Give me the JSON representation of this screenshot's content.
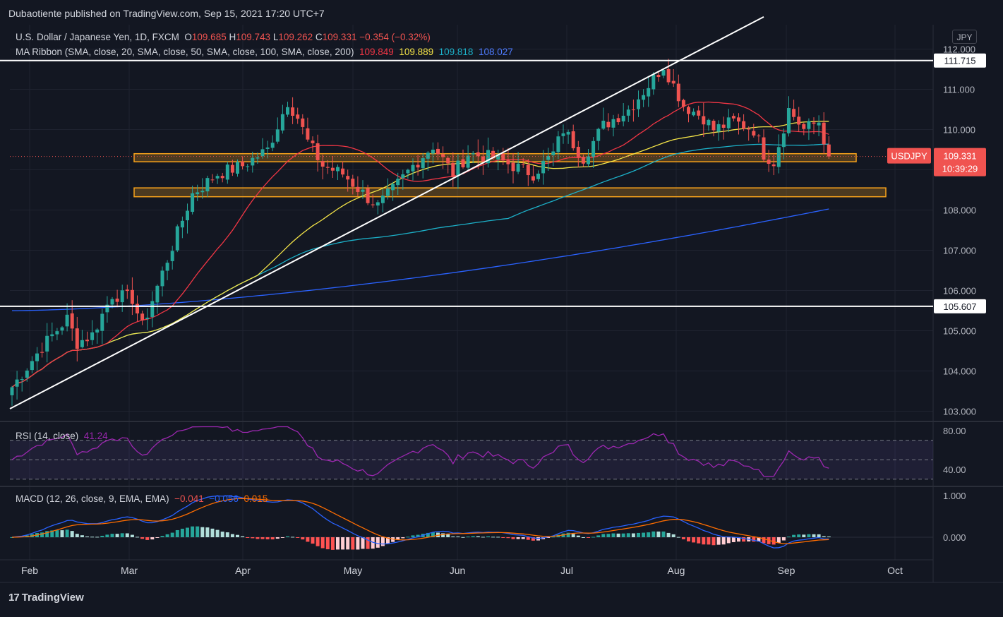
{
  "header": {
    "publisher": "Dubaotiente published on TradingView.com, Sep 15, 2021 17:20 UTC+7"
  },
  "legend": {
    "symbol": "U.S. Dollar / Japanese Yen, 1D, FXCM",
    "o_label": "O",
    "open": "109.685",
    "h_label": "H",
    "high": "109.743",
    "l_label": "L",
    "low": "109.262",
    "c_label": "C",
    "close": "109.331",
    "change": "−0.354 (−0.32%)",
    "ma_label": "MA Ribbon (SMA, close, 20, SMA, close, 50, SMA, close, 100, SMA, close, 200)",
    "ma20": "109.849",
    "ma50": "109.889",
    "ma100": "109.818",
    "ma200": "108.027",
    "rsi_label": "RSI (14, close)",
    "rsi_value": "41.24",
    "macd_label": "MACD (12, 26, close, 9, EMA, EMA)",
    "macd": "−0.041",
    "signal": "−0.056",
    "hist": "0.015"
  },
  "currency": "JPY",
  "price_tag": {
    "symbol": "USDJPY",
    "price": "109.331",
    "countdown": "10:39:29"
  },
  "footer": {
    "brand": "TradingView",
    "mark": "17"
  },
  "colors": {
    "bg": "#131722",
    "grid": "#1f2330",
    "text": "#d1d4dc",
    "up": "#26a69a",
    "down": "#ef5350",
    "ma20": "#f23645",
    "ma50": "#f5e548",
    "ma100": "#1cb1c9",
    "ma200": "#2a62ff",
    "rsi": "#9c27b0",
    "macd": "#2962ff",
    "signal": "#ff6d00",
    "zone": "#f7a21b",
    "tag": "#f05350"
  },
  "chart_data": [
    {
      "type": "candlestick",
      "title": "U.S. Dollar / Japanese Yen, 1D, FXCM",
      "x_ticks": [
        "Feb",
        "Mar",
        "Apr",
        "May",
        "Jun",
        "Jul",
        "Aug",
        "Sep",
        "Oct"
      ],
      "y_ticks": [
        103.0,
        104.0,
        105.0,
        106.0,
        107.0,
        108.0,
        109.0,
        110.0,
        111.0,
        112.0
      ],
      "y_tick_labels": [
        "103.000",
        "104.000",
        "105.000",
        "106.000",
        "107.000",
        "108.000",
        "109.000",
        "110.000",
        "111.000",
        "112.000"
      ],
      "ylim": [
        102.8,
        112.3
      ],
      "n_bars": 164,
      "anchors_close": [
        [
          0,
          103.6
        ],
        [
          6,
          104.6
        ],
        [
          11,
          105.3
        ],
        [
          13,
          104.7
        ],
        [
          16,
          104.9
        ],
        [
          20,
          105.9
        ],
        [
          24,
          105.8
        ],
        [
          26,
          105.1
        ],
        [
          29,
          106.1
        ],
        [
          32,
          107.1
        ],
        [
          36,
          108.4
        ],
        [
          41,
          108.9
        ],
        [
          46,
          109.1
        ],
        [
          51,
          109.5
        ],
        [
          55,
          110.7
        ],
        [
          57,
          110.3
        ],
        [
          59,
          109.7
        ],
        [
          62,
          109.1
        ],
        [
          66,
          108.9
        ],
        [
          71,
          108.3
        ],
        [
          73,
          108.1
        ],
        [
          76,
          108.5
        ],
        [
          80,
          109.1
        ],
        [
          84,
          109.6
        ],
        [
          88,
          108.9
        ],
        [
          91,
          109.4
        ],
        [
          96,
          109.3
        ],
        [
          100,
          109.1
        ],
        [
          104,
          108.9
        ],
        [
          108,
          109.4
        ],
        [
          110,
          110.0
        ],
        [
          114,
          109.3
        ],
        [
          118,
          110.1
        ],
        [
          123,
          110.5
        ],
        [
          127,
          111.1
        ],
        [
          130,
          111.6
        ],
        [
          134,
          110.6
        ],
        [
          138,
          110.3
        ],
        [
          140,
          110.0
        ],
        [
          144,
          110.2
        ],
        [
          148,
          110.0
        ],
        [
          150,
          109.4
        ],
        [
          152,
          109.2
        ],
        [
          155,
          110.5
        ],
        [
          158,
          110.0
        ],
        [
          161,
          110.2
        ],
        [
          163,
          109.33
        ]
      ],
      "horizontal_levels": [
        {
          "value": 111.715,
          "label": "111.715"
        },
        {
          "value": 105.607,
          "label": "105.607"
        }
      ],
      "zones": [
        {
          "from": 109.2,
          "to": 109.4
        },
        {
          "from": 108.33,
          "to": 108.55
        }
      ],
      "trendline": {
        "from": [
          0,
          103.5
        ],
        "to": [
          150,
          112.8
        ]
      },
      "moving_averages": [
        {
          "name": "SMA 20",
          "last": 109.849
        },
        {
          "name": "SMA 50",
          "last": 109.889
        },
        {
          "name": "SMA 100",
          "last": 109.818
        },
        {
          "name": "SMA 200",
          "last": 108.027
        }
      ],
      "last_price": 109.331
    },
    {
      "type": "line",
      "title": "RSI (14, close)",
      "y_ticks": [
        40,
        80
      ],
      "y_tick_labels": [
        "40.00",
        "80.00"
      ],
      "ylim": [
        30,
        87
      ],
      "bands": [
        30,
        50,
        70
      ],
      "last": 41.24
    },
    {
      "type": "bar",
      "title": "MACD (12, 26, close, 9, EMA, EMA)",
      "y_ticks": [
        0,
        1
      ],
      "y_tick_labels": [
        "0.000",
        "1.000"
      ],
      "ylim": [
        -0.35,
        1.12
      ],
      "macd_last": -0.041,
      "signal_last": -0.056,
      "histogram_last": 0.015
    }
  ]
}
